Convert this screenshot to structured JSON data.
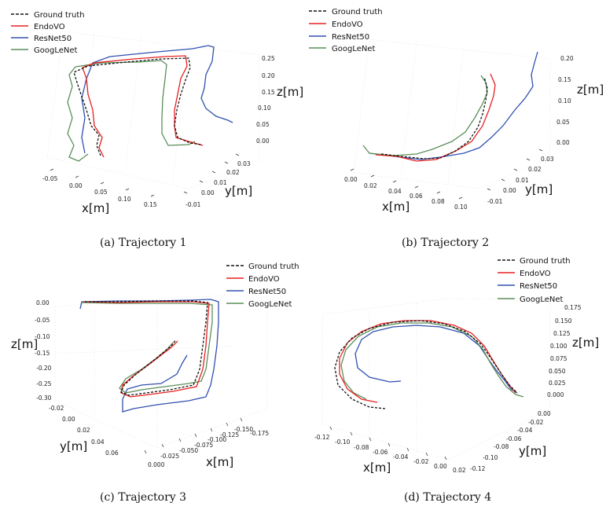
{
  "colors": {
    "ground_truth": "#111111",
    "endovo": "#e82020",
    "resnet50": "#3050b0",
    "googlenet": "#5a8f5a"
  },
  "legend": [
    "Ground truth",
    "EndoVO",
    "ResNet50",
    "GoogLeNet"
  ],
  "chart_data": [
    {
      "type": "line",
      "subplot": "a",
      "caption": "(a) Trajectory 1",
      "projection": "3d",
      "axis_labels": {
        "x": "x[m]",
        "y": "y[m]",
        "z": "z[m]"
      },
      "x_ticks": [
        "-0.05",
        "0.00",
        "0.05",
        "0.10",
        "0.15"
      ],
      "y_ticks": [
        "-0.01",
        "0.00",
        "0.01",
        "0.02",
        "0.03"
      ],
      "z_ticks": [
        "0.00",
        "0.05",
        "0.10",
        "0.15",
        "0.20",
        "0.25"
      ],
      "series": [
        {
          "name": "Ground truth",
          "style": "dashed"
        },
        {
          "name": "EndoVO",
          "style": "solid"
        },
        {
          "name": "ResNet50",
          "style": "solid"
        },
        {
          "name": "GoogLeNet",
          "style": "solid"
        }
      ]
    },
    {
      "type": "line",
      "subplot": "b",
      "caption": "(b) Trajectory 2",
      "projection": "3d",
      "axis_labels": {
        "x": "x[m]",
        "y": "y[m]",
        "z": "z[m]"
      },
      "x_ticks": [
        "0.00",
        "0.02",
        "0.04",
        "0.06",
        "0.08",
        "0.10"
      ],
      "y_ticks": [
        "-0.01",
        "0.00",
        "0.01",
        "0.02",
        "0.03"
      ],
      "z_ticks": [
        "0.00",
        "0.05",
        "0.10",
        "0.15",
        "0.20"
      ],
      "series": [
        {
          "name": "Ground truth",
          "style": "dashed"
        },
        {
          "name": "EndoVO",
          "style": "solid"
        },
        {
          "name": "ResNet50",
          "style": "solid"
        },
        {
          "name": "GoogLeNet",
          "style": "solid"
        }
      ]
    },
    {
      "type": "line",
      "subplot": "c",
      "caption": "(c) Trajectory 3",
      "projection": "3d",
      "axis_labels": {
        "x": "x[m]",
        "y": "y[m]",
        "z": "z[m]"
      },
      "x_ticks": [
        "0.000",
        "-0.025",
        "-0.050",
        "-0.075",
        "-0.100",
        "-0.125",
        "-0.150",
        "-0.175"
      ],
      "y_ticks": [
        "-0.02",
        "0.00",
        "0.02",
        "0.04",
        "0.06"
      ],
      "z_ticks": [
        "0.00",
        "-0.05",
        "-0.10",
        "-0.15",
        "-0.20",
        "-0.25",
        "-0.30"
      ],
      "series": [
        {
          "name": "Ground truth",
          "style": "dashed"
        },
        {
          "name": "EndoVO",
          "style": "solid"
        },
        {
          "name": "ResNet50",
          "style": "solid"
        },
        {
          "name": "GoogLeNet",
          "style": "solid"
        }
      ]
    },
    {
      "type": "line",
      "subplot": "d",
      "caption": "(d) Trajectory 4",
      "projection": "3d",
      "axis_labels": {
        "x": "x[m]",
        "y": "y[m]",
        "z": "z[m]"
      },
      "x_ticks": [
        "-0.12",
        "-0.10",
        "-0.08",
        "-0.06",
        "-0.04",
        "-0.02",
        "0.00",
        "0.02"
      ],
      "y_ticks": [
        "-0.12",
        "-0.10",
        "-0.08",
        "-0.06",
        "-0.04",
        "-0.02",
        "0.00"
      ],
      "z_ticks": [
        "0.000",
        "0.025",
        "0.050",
        "0.075",
        "0.100",
        "0.125",
        "0.150",
        "0.175"
      ],
      "series": [
        {
          "name": "Ground truth",
          "style": "dashed"
        },
        {
          "name": "EndoVO",
          "style": "solid"
        },
        {
          "name": "ResNet50",
          "style": "solid"
        },
        {
          "name": "GoogLeNet",
          "style": "solid"
        }
      ]
    }
  ]
}
